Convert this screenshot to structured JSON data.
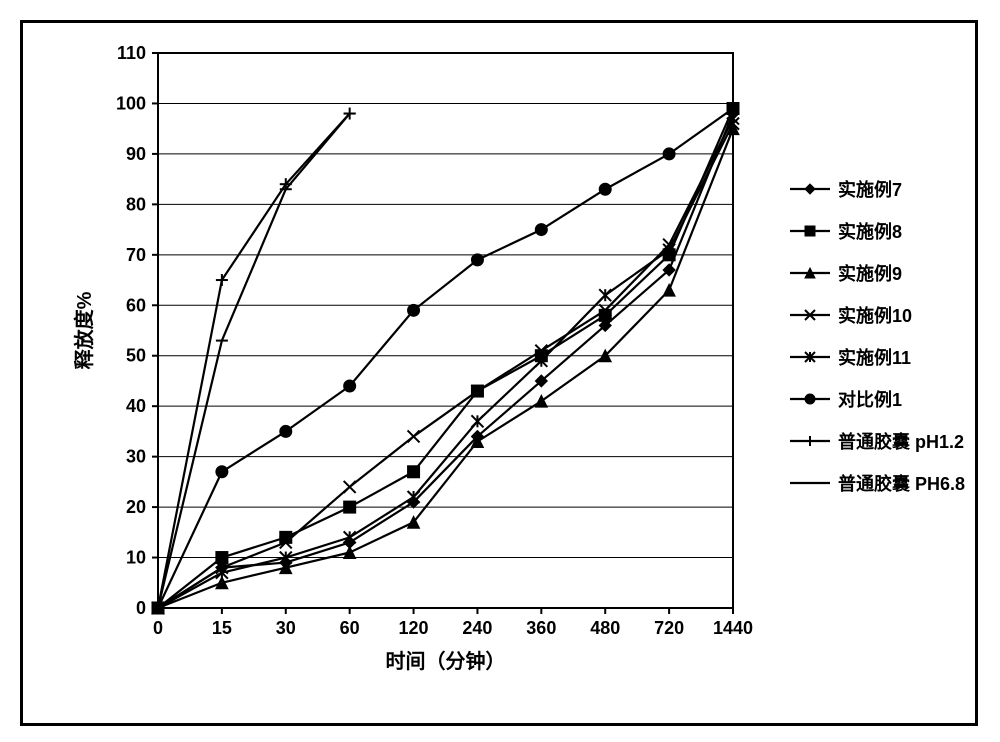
{
  "chart": {
    "type": "line",
    "background_color": "#ffffff",
    "border_color": "#000000",
    "xlabel": "时间（分钟）",
    "ylabel": "释放度%",
    "label_fontsize": 20,
    "tick_fontsize": 18,
    "tick_fontweight": "bold",
    "axis_color": "#000000",
    "grid_color": "#000000",
    "grid_width": 1,
    "plot_border_width": 2,
    "x_categories": [
      "0",
      "15",
      "30",
      "60",
      "120",
      "240",
      "360",
      "480",
      "720",
      "1440"
    ],
    "ylim": [
      0,
      110
    ],
    "ytick_step": 10,
    "tick_len": 6,
    "line_color": "#000000",
    "line_width": 2.2,
    "marker_size": 6,
    "series": [
      {
        "key": "s7",
        "label": "实施例7",
        "marker": "diamond",
        "values": [
          0,
          8,
          9,
          13,
          21,
          34,
          45,
          56,
          67,
          98
        ]
      },
      {
        "key": "s8",
        "label": "实施例8",
        "marker": "square",
        "values": [
          0,
          10,
          14,
          20,
          27,
          43,
          50,
          58,
          70,
          99
        ]
      },
      {
        "key": "s9",
        "label": "实施例9",
        "marker": "triangle",
        "values": [
          0,
          5,
          8,
          11,
          17,
          33,
          41,
          50,
          63,
          95
        ]
      },
      {
        "key": "s10",
        "label": "实施例10",
        "marker": "x",
        "values": [
          0,
          8,
          13,
          24,
          34,
          43,
          51,
          59,
          72,
          97
        ]
      },
      {
        "key": "s11",
        "label": "实施例11",
        "marker": "asterisk",
        "values": [
          0,
          7,
          10,
          14,
          22,
          37,
          49,
          62,
          71,
          96
        ]
      },
      {
        "key": "cmp1",
        "label": "对比例1",
        "marker": "circle",
        "values": [
          0,
          27,
          35,
          44,
          59,
          69,
          75,
          83,
          90,
          99
        ]
      },
      {
        "key": "cap12",
        "label": "普通胶囊 pH1.2",
        "marker": "plus",
        "values": [
          0,
          65,
          84,
          98
        ]
      },
      {
        "key": "cap68",
        "label": "普通胶囊 PH6.8",
        "marker": "dash",
        "values": [
          0,
          53,
          83,
          98
        ]
      }
    ]
  }
}
